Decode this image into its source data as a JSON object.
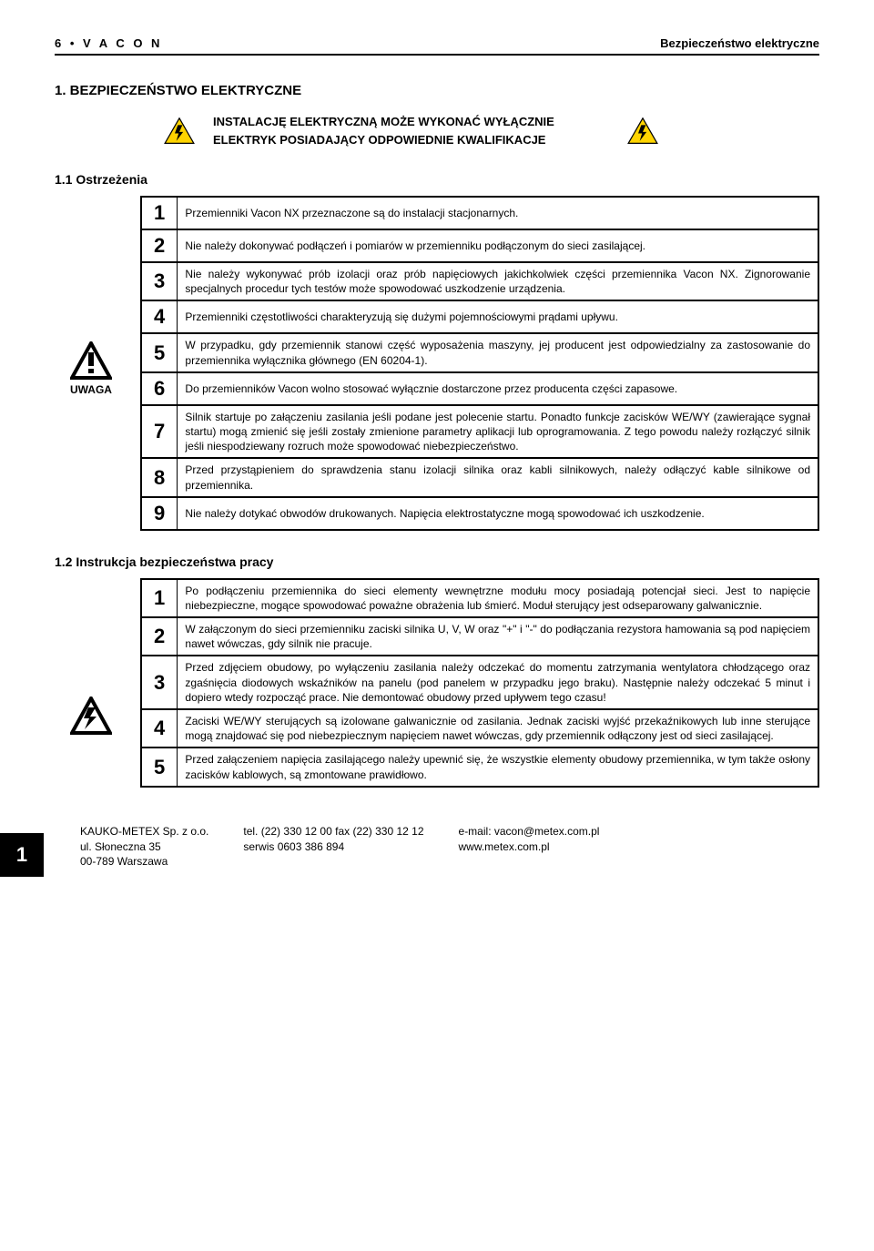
{
  "header": {
    "left": "6 • V A C O N",
    "right": "Bezpieczeństwo elektryczne"
  },
  "section_title": "1.   BEZPIECZEŃSTWO ELEKTRYCZNE",
  "banner_line1": "INSTALACJĘ ELEKTRYCZNĄ MOŻE WYKONAĆ WYŁĄCZNIE",
  "banner_line2": "ELEKTRYK POSIADAJĄCY ODPOWIEDNIE KWALIFIKACJE",
  "sub1_title": "1.1  Ostrzeżenia",
  "side_label": "UWAGA",
  "warnings": [
    {
      "n": "1",
      "t": "Przemienniki Vacon NX przeznaczone są do instalacji stacjonarnych."
    },
    {
      "n": "2",
      "t": "Nie należy dokonywać podłączeń i pomiarów  w przemienniku podłączonym do sieci zasilającej."
    },
    {
      "n": "3",
      "t": "Nie należy wykonywać prób izolacji oraz prób napięciowych jakichkolwiek części przemiennika Vacon NX. Zignorowanie specjalnych procedur tych testów może spowodować uszkodzenie urządzenia."
    },
    {
      "n": "4",
      "t": "Przemienniki częstotliwości charakteryzują się dużymi pojemnościowymi prądami upływu."
    },
    {
      "n": "5",
      "t": "W przypadku, gdy przemiennik stanowi część wyposażenia maszyny, jej producent jest odpowiedzialny za zastosowanie do przemiennika wyłącznika głównego (EN 60204-1)."
    },
    {
      "n": "6",
      "t": "Do przemienników Vacon wolno stosować wyłącznie dostarczone przez producenta części zapasowe."
    },
    {
      "n": "7",
      "t": "Silnik startuje po załączeniu zasilania jeśli podane jest polecenie startu. Ponadto funkcje zacisków WE/WY (zawierające sygnał startu) mogą zmienić się jeśli zostały zmienione parametry aplikacji lub oprogramowania. Z tego powodu należy rozłączyć silnik jeśli niespodziewany rozruch może spowodować niebezpieczeństwo."
    },
    {
      "n": "8",
      "t": "Przed przystąpieniem do sprawdzenia stanu izolacji silnika oraz kabli silnikowych, należy odłączyć kable silnikowe od przemiennika."
    },
    {
      "n": "9",
      "t": "Nie należy dotykać obwodów drukowanych. Napięcia elektrostatyczne mogą spowodować ich uszkodzenie."
    }
  ],
  "sub2_title": "1.2  Instrukcja bezpieczeństwa pracy",
  "safety": [
    {
      "n": "1",
      "t": "Po podłączeniu przemiennika do sieci elementy wewnętrzne modułu mocy posiadają potencjał sieci. Jest to napięcie niebezpieczne, mogące spowodować poważne obrażenia lub śmierć. Moduł sterujący jest odseparowany galwanicznie."
    },
    {
      "n": "2",
      "t": "W załączonym do sieci przemienniku zaciski silnika U, V, W oraz \"+\" i \"-\" do podłączania rezystora hamowania są pod napięciem nawet wówczas, gdy silnik nie pracuje."
    },
    {
      "n": "3",
      "t": "Przed zdjęciem obudowy, po wyłączeniu zasilania należy odczekać do momentu zatrzymania wentylatora chłodzącego oraz zgaśnięcia diodowych wskaźników na panelu (pod panelem w przypadku jego braku). Następnie należy odczekać 5 minut i dopiero wtedy rozpocząć prace. Nie demontować obudowy przed upływem tego czasu!"
    },
    {
      "n": "4",
      "t": "Zaciski WE/WY sterujących są izolowane galwanicznie od zasilania. Jednak zaciski wyjść przekaźnikowych lub inne sterujące mogą znajdować się pod niebezpiecznym napięciem nawet wówczas, gdy przemiennik odłączony jest od sieci zasilającej."
    },
    {
      "n": "5",
      "t": "Przed załączeniem napięcia zasilającego należy upewnić się, że wszystkie elementy obudowy przemiennika, w tym także osłony zacisków kablowych, są zmontowane prawidłowo."
    }
  ],
  "footer": {
    "page": "1",
    "col1": [
      "KAUKO-METEX Sp. z o.o.",
      "ul. Słoneczna 35",
      "00-789 Warszawa"
    ],
    "col2": [
      "tel. (22) 330 12 00      fax (22) 330 12 12",
      "serwis   0603 386 894"
    ],
    "col3": [
      "e-mail:  vacon@metex.com.pl",
      "www.metex.com.pl"
    ]
  },
  "colors": {
    "warn_fill": "#ffd400",
    "warn_stroke": "#000000"
  }
}
